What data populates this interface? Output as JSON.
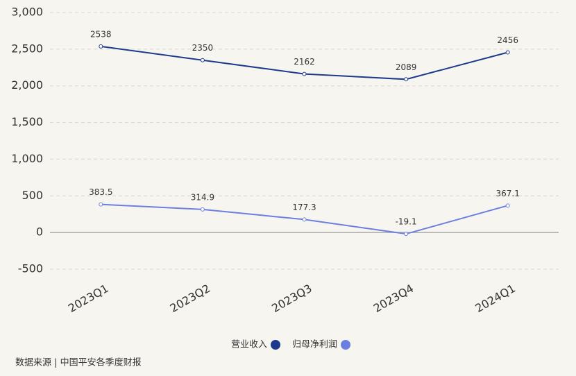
{
  "chart_data": {
    "type": "line",
    "categories": [
      "2023Q1",
      "2023Q2",
      "2023Q3",
      "2023Q4",
      "2024Q1"
    ],
    "series": [
      {
        "name": "营业收入",
        "color": "#1e3a8a",
        "values": [
          2538,
          2350,
          2162,
          2089,
          2456
        ]
      },
      {
        "name": "归母净利润",
        "color": "#6b7fe0",
        "values": [
          383.5,
          314.9,
          177.3,
          -19.1,
          367.1
        ]
      }
    ],
    "ylim": [
      -500,
      3000
    ],
    "yticks": [
      -500,
      0,
      500,
      {
        "value": 1000,
        "label": "1,000"
      },
      {
        "value": 1500,
        "label": "1,500"
      },
      {
        "value": 2000,
        "label": "2,000"
      },
      {
        "value": 2500,
        "label": "2,500"
      },
      {
        "value": 3000,
        "label": "3,000"
      }
    ],
    "grid": true,
    "source": "数据来源 | 中国平安各季度财报"
  }
}
